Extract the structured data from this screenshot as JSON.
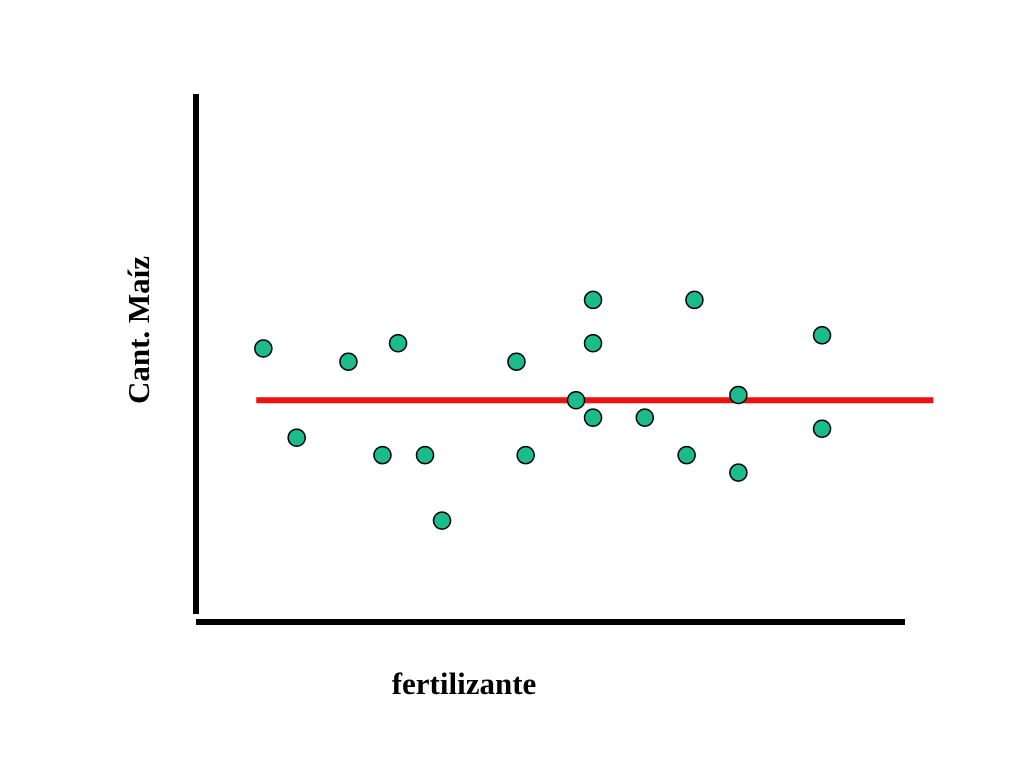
{
  "chart_data": {
    "type": "scatter",
    "title": "",
    "xlabel": "fertilizante",
    "ylabel": "Cant. Maíz",
    "xlim": [
      0,
      100
    ],
    "ylim": [
      0,
      100
    ],
    "grid": false,
    "legend": "none",
    "colors": {
      "point_fill": "#1abc8c",
      "point_stroke": "#000000",
      "trend_line": "#ee1111",
      "axis": "#000000"
    },
    "points": [
      {
        "x": 9.5,
        "y": 51.8
      },
      {
        "x": 14.2,
        "y": 34.9
      },
      {
        "x": 21.5,
        "y": 49.3
      },
      {
        "x": 26.3,
        "y": 31.6
      },
      {
        "x": 28.5,
        "y": 52.8
      },
      {
        "x": 32.3,
        "y": 31.6
      },
      {
        "x": 34.7,
        "y": 19.2
      },
      {
        "x": 45.2,
        "y": 49.3
      },
      {
        "x": 46.5,
        "y": 31.6
      },
      {
        "x": 53.6,
        "y": 42.0
      },
      {
        "x": 56.0,
        "y": 61.0
      },
      {
        "x": 56.0,
        "y": 52.8
      },
      {
        "x": 56.0,
        "y": 38.7
      },
      {
        "x": 63.3,
        "y": 38.7
      },
      {
        "x": 69.2,
        "y": 31.6
      },
      {
        "x": 70.3,
        "y": 61.0
      },
      {
        "x": 76.5,
        "y": 43.0
      },
      {
        "x": 76.5,
        "y": 28.3
      },
      {
        "x": 88.3,
        "y": 54.3
      },
      {
        "x": 88.3,
        "y": 36.6
      }
    ],
    "trend_line": {
      "x": [
        8.5,
        104.0
      ],
      "y": [
        42.0,
        42.0
      ]
    }
  }
}
